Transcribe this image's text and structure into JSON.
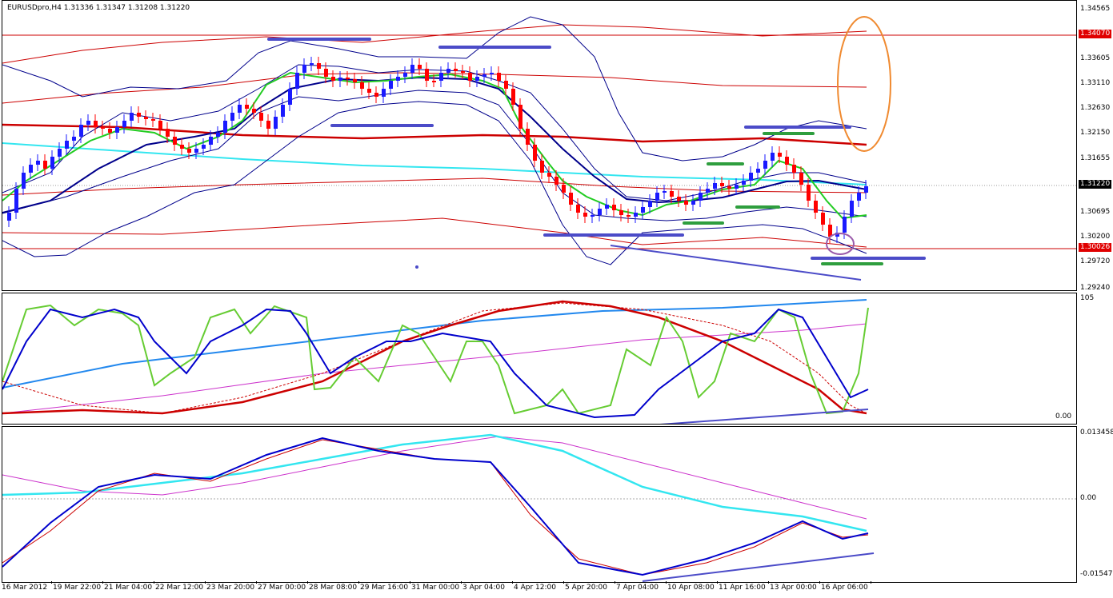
{
  "window": {
    "symbol_info": "EURUSDpro,H4  1.31336 1.31347 1.31208 1.31220"
  },
  "price_axis": {
    "labels": [
      "1.34565",
      "1.34070",
      "1.33605",
      "1.33110",
      "1.32630",
      "1.32150",
      "1.31655",
      "1.31220",
      "1.30695",
      "1.30200",
      "1.30026",
      "1.29720",
      "1.29240"
    ],
    "tags": {
      "upper_line": "1.34070",
      "current_price": "1.31220",
      "lower_line": "1.30026"
    }
  },
  "oscillator_axis": {
    "top_label": "105",
    "bottom_label": "0.00"
  },
  "macd_axis": {
    "top_label": "0.013458",
    "zero_label": "0.00",
    "bottom_label": "-0.01547"
  },
  "time_axis": {
    "labels": [
      "16 Mar 2012",
      "19 Mar 22:00",
      "21 Mar 04:00",
      "22 Mar 12:00",
      "23 Mar 20:00",
      "27 Mar 00:00",
      "28 Mar 08:00",
      "29 Mar 16:00",
      "31 Mar 00:00",
      "3 Apr 04:00",
      "4 Apr 12:00",
      "5 Apr 20:00",
      "7 Apr 04:00",
      "10 Apr 08:00",
      "11 Apr 16:00",
      "13 Apr 00:00",
      "16 Apr 06:00"
    ]
  },
  "colors": {
    "bull_candle": "#1a1aff",
    "bear_candle": "#ff0000",
    "bollinger": "#00008b",
    "ma_red": "#cc0000",
    "ma_cyan": "#33e6f0",
    "ma_green": "#22cc22",
    "annotation_blue": "#4b4bc8",
    "annotation_green": "#2e9e3e",
    "annotation_orange": "#f08a30",
    "annotation_purple": "#9a5aaa",
    "stoch_green": "#66cc33",
    "stoch_blue": "#0000cc",
    "rsi_blue": "#2288ee",
    "magenta": "#cc33cc"
  }
}
